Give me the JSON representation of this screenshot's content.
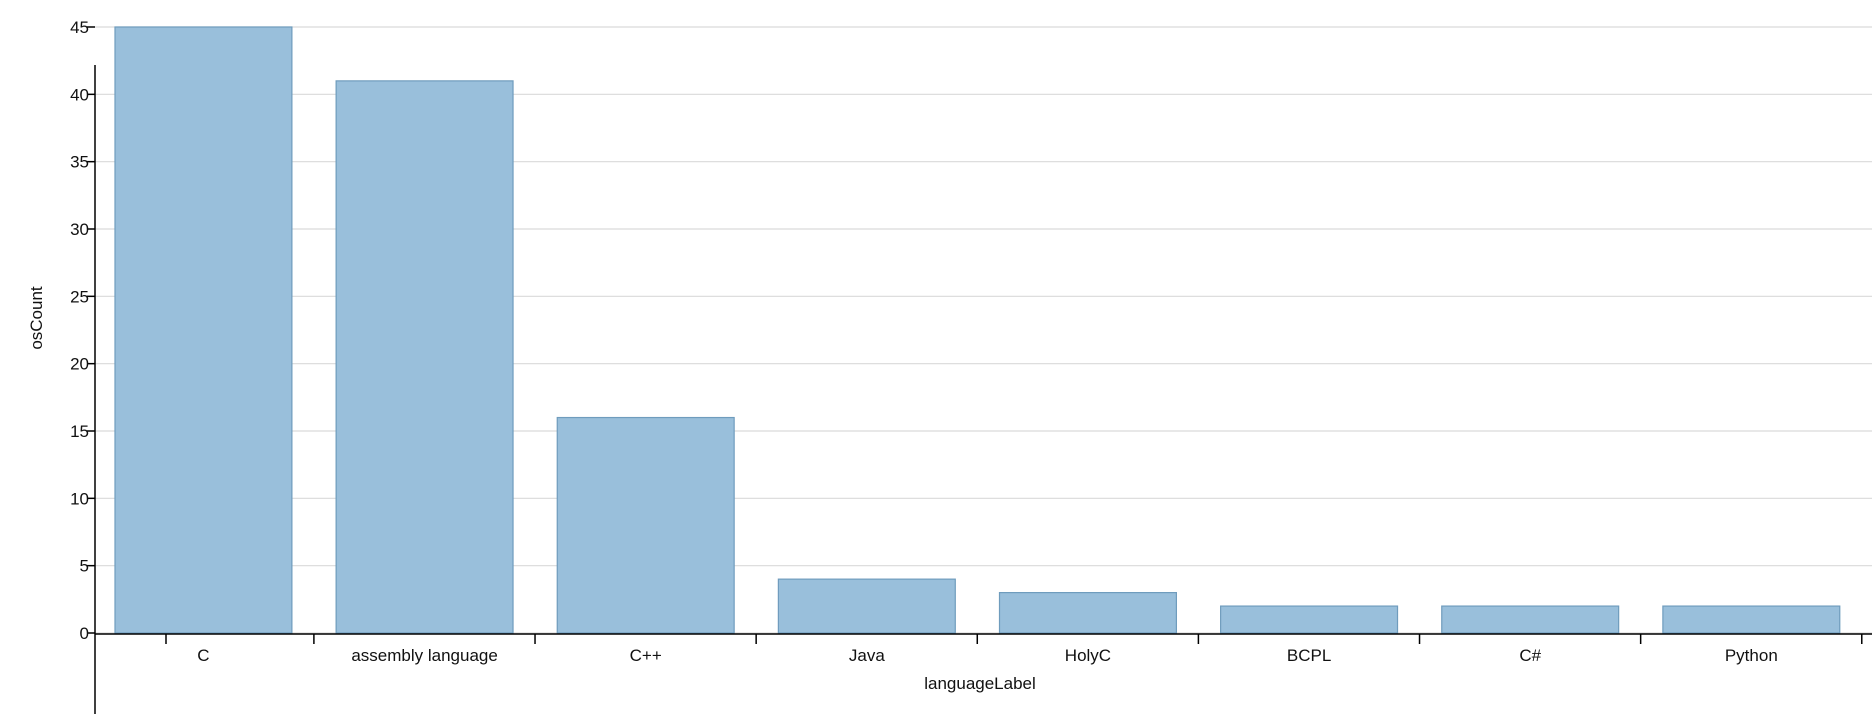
{
  "chart_data": {
    "type": "bar",
    "categories": [
      "C",
      "assembly language",
      "C++",
      "Java",
      "HolyC",
      "BCPL",
      "C#",
      "Python"
    ],
    "values": [
      45,
      41,
      16,
      4,
      3,
      2,
      2,
      2
    ],
    "xlabel": "languageLabel",
    "ylabel": "osCount",
    "ylim": [
      0,
      45
    ],
    "yticks": [
      0,
      5,
      10,
      15,
      20,
      25,
      30,
      35,
      40,
      45
    ],
    "grid": true,
    "legend": "none",
    "colors": {
      "bar_fill": "#99bfdb",
      "bar_stroke": "#6f9cbd",
      "grid": "#d9d9d9"
    }
  }
}
